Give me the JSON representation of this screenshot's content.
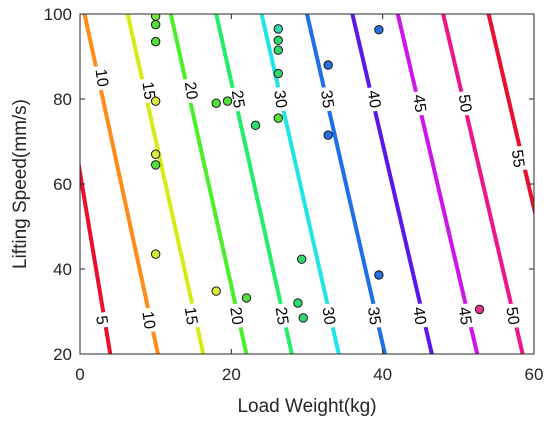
{
  "chart_data": {
    "type": "contour",
    "title": "",
    "xlabel": "Load Weight(kg)",
    "ylabel": "Lifting Speed(mm/s)",
    "xlim": [
      0,
      60
    ],
    "ylim": [
      20,
      100
    ],
    "xticks": [
      "0",
      "20",
      "40",
      "60"
    ],
    "yticks": [
      "20",
      "40",
      "60",
      "80",
      "100"
    ],
    "grid": false,
    "legend": "none",
    "contours": [
      {
        "level": 5,
        "label": "5",
        "color": "#e8102a",
        "x_at_y20": 4.0,
        "x_at_y100": -3.5
      },
      {
        "level": 10,
        "label": "10",
        "color": "#ff8c1a",
        "x_at_y20": 10.3,
        "x_at_y100": 0.6
      },
      {
        "level": 15,
        "label": "15",
        "color": "#d4ec14",
        "x_at_y20": 16.3,
        "x_at_y100": 6.3
      },
      {
        "level": 20,
        "label": "20",
        "color": "#4cee2a",
        "x_at_y20": 22.0,
        "x_at_y100": 12.0
      },
      {
        "level": 25,
        "label": "25",
        "color": "#22ee6a",
        "x_at_y20": 28.0,
        "x_at_y100": 18.0
      },
      {
        "level": 30,
        "label": "30",
        "color": "#1ee6e6",
        "x_at_y20": 34.2,
        "x_at_y100": 24.0
      },
      {
        "level": 35,
        "label": "35",
        "color": "#1f6fe8",
        "x_at_y20": 40.3,
        "x_at_y100": 30.0
      },
      {
        "level": 40,
        "label": "40",
        "color": "#5a18e8",
        "x_at_y20": 46.5,
        "x_at_y100": 36.0
      },
      {
        "level": 45,
        "label": "45",
        "color": "#cc16e8",
        "x_at_y20": 52.5,
        "x_at_y100": 42.0
      },
      {
        "level": 50,
        "label": "50",
        "color": "#f0148c",
        "x_at_y20": 58.5,
        "x_at_y100": 48.0
      },
      {
        "level": 55,
        "label": "55",
        "color": "#e8102a",
        "x_at_y20": 64.5,
        "x_at_y100": 54.0
      }
    ],
    "contour_labels": [
      {
        "level": 10,
        "text": "10",
        "x": 3.0,
        "y": 85,
        "angle": 82
      },
      {
        "level": 15,
        "text": "15",
        "x": 9.2,
        "y": 82,
        "angle": 82
      },
      {
        "level": 20,
        "text": "20",
        "x": 14.8,
        "y": 82,
        "angle": 82
      },
      {
        "level": 25,
        "text": "25",
        "x": 21.0,
        "y": 80,
        "angle": 82
      },
      {
        "level": 30,
        "text": "30",
        "x": 26.6,
        "y": 80,
        "angle": 82
      },
      {
        "level": 35,
        "text": "35",
        "x": 32.8,
        "y": 80,
        "angle": 82
      },
      {
        "level": 40,
        "text": "40",
        "x": 39.0,
        "y": 80,
        "angle": 82
      },
      {
        "level": 45,
        "text": "45",
        "x": 45.0,
        "y": 79,
        "angle": 82
      },
      {
        "level": 50,
        "text": "50",
        "x": 51.0,
        "y": 79,
        "angle": 82
      },
      {
        "level": 55,
        "text": "55",
        "x": 58.0,
        "y": 66,
        "angle": 82
      },
      {
        "level": 5,
        "text": "5",
        "x": 3.0,
        "y": 28,
        "angle": 82
      },
      {
        "level": 10,
        "text": "10",
        "x": 9.2,
        "y": 28,
        "angle": 82
      },
      {
        "level": 15,
        "text": "15",
        "x": 14.8,
        "y": 29,
        "angle": 82
      },
      {
        "level": 20,
        "text": "20",
        "x": 20.8,
        "y": 29,
        "angle": 82
      },
      {
        "level": 25,
        "text": "25",
        "x": 26.8,
        "y": 29,
        "angle": 82
      },
      {
        "level": 30,
        "text": "30",
        "x": 33.0,
        "y": 29,
        "angle": 82
      },
      {
        "level": 35,
        "text": "35",
        "x": 39.0,
        "y": 29,
        "angle": 82
      },
      {
        "level": 40,
        "text": "40",
        "x": 45.0,
        "y": 29,
        "angle": 82
      },
      {
        "level": 45,
        "text": "45",
        "x": 51.0,
        "y": 29,
        "angle": 82
      },
      {
        "level": 50,
        "text": "50",
        "x": 57.3,
        "y": 29,
        "angle": 82
      }
    ],
    "points": [
      {
        "x": 10.0,
        "y": 99.5,
        "color": "#78e838"
      },
      {
        "x": 10.0,
        "y": 97.5,
        "color": "#50e038"
      },
      {
        "x": 10.0,
        "y": 93.5,
        "color": "#50e038"
      },
      {
        "x": 10.0,
        "y": 79.5,
        "color": "#d8ec3a"
      },
      {
        "x": 10.0,
        "y": 67.0,
        "color": "#d8ec3a"
      },
      {
        "x": 10.0,
        "y": 64.5,
        "color": "#50e038"
      },
      {
        "x": 10.0,
        "y": 43.5,
        "color": "#d8ec3a"
      },
      {
        "x": 18.0,
        "y": 79.0,
        "color": "#50e038"
      },
      {
        "x": 19.5,
        "y": 79.5,
        "color": "#50e038"
      },
      {
        "x": 18.0,
        "y": 34.8,
        "color": "#d8ec3a"
      },
      {
        "x": 22.0,
        "y": 33.2,
        "color": "#50e038"
      },
      {
        "x": 23.2,
        "y": 73.8,
        "color": "#30d870"
      },
      {
        "x": 26.2,
        "y": 96.5,
        "color": "#30d8b0"
      },
      {
        "x": 26.2,
        "y": 93.8,
        "color": "#30d870"
      },
      {
        "x": 26.2,
        "y": 91.5,
        "color": "#30d870"
      },
      {
        "x": 26.2,
        "y": 86.0,
        "color": "#30d870"
      },
      {
        "x": 26.2,
        "y": 75.5,
        "color": "#50e038"
      },
      {
        "x": 29.3,
        "y": 42.3,
        "color": "#30d870"
      },
      {
        "x": 28.8,
        "y": 32.0,
        "color": "#30d870"
      },
      {
        "x": 29.5,
        "y": 28.5,
        "color": "#30d870"
      },
      {
        "x": 32.8,
        "y": 88.0,
        "color": "#2870e0"
      },
      {
        "x": 32.8,
        "y": 71.5,
        "color": "#2870e0"
      },
      {
        "x": 39.5,
        "y": 96.3,
        "color": "#2870e0"
      },
      {
        "x": 39.5,
        "y": 38.6,
        "color": "#2870e0"
      },
      {
        "x": 52.8,
        "y": 30.5,
        "color": "#e83090"
      }
    ]
  }
}
